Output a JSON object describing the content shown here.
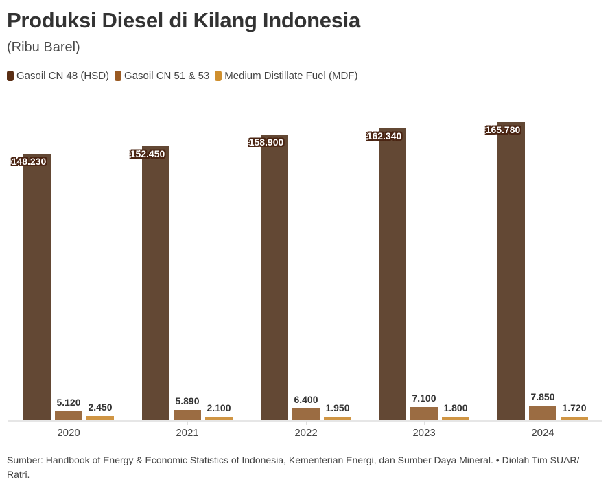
{
  "header": {
    "title": "Produksi Diesel di Kilang Indonesia",
    "subtitle": "(Ribu Barel)"
  },
  "legend": [
    {
      "label": "Gasoil CN 48 (HSD)",
      "color": "#5a2e14"
    },
    {
      "label": "Gasoil CN 51 & 53",
      "color": "#9a5a22"
    },
    {
      "label": "Medium Distillate Fuel (MDF)",
      "color": "#cf8f2e"
    }
  ],
  "colors": {
    "hsd_bar": "#634834",
    "cn51_bar": "#9b6c42",
    "mdf_bar": "#cf9544"
  },
  "footer": {
    "source": "Sumber: Handbook of Energy & Economic Statistics of Indonesia, Kementerian Energi, dan Sumber Daya Mineral. • Diolah Tim SUAR/ Ratri."
  },
  "labels": {
    "hsd": [
      "148.230",
      "152.450",
      "158.900",
      "162.340",
      "165.780"
    ],
    "cn51": [
      "5.120",
      "5.890",
      "6.400",
      "7.100",
      "7.850"
    ],
    "mdf": [
      "2.450",
      "2.100",
      "1.950",
      "1.800",
      "1.720"
    ]
  },
  "chart_data": {
    "type": "bar",
    "title": "Produksi Diesel di Kilang Indonesia",
    "subtitle": "(Ribu Barel)",
    "xlabel": "",
    "ylabel": "Ribu Barel",
    "categories": [
      "2020",
      "2021",
      "2022",
      "2023",
      "2024"
    ],
    "series": [
      {
        "name": "Gasoil CN 48 (HSD)",
        "values": [
          148230,
          152450,
          158900,
          162340,
          165780
        ]
      },
      {
        "name": "Gasoil CN 51 & 53",
        "values": [
          5120,
          5890,
          6400,
          7100,
          7850
        ]
      },
      {
        "name": "Medium Distillate Fuel (MDF)",
        "values": [
          2450,
          2100,
          1950,
          1800,
          1720
        ]
      }
    ],
    "ylim": [
      0,
      170000
    ],
    "grid": false,
    "legend_position": "top-left",
    "y_axis_visible": false,
    "data_labels": true
  }
}
